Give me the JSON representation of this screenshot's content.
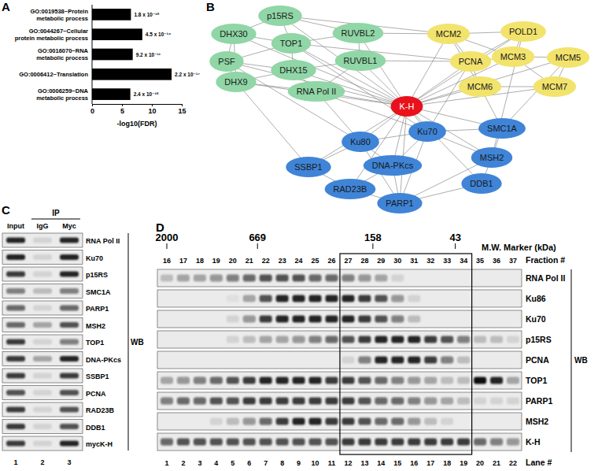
{
  "chart_data": {
    "type": "bar",
    "orientation": "horizontal",
    "panel_label": "A",
    "categories": [
      "GO:0019538~Protein\nmetabolic process",
      "GO:0044267~Cellular\nprotein metabolic process",
      "GO:0016070~RNA\nmetabolic process",
      "GO:0006412~Translation",
      "GO:0006259~DNA\nmetabolic process"
    ],
    "values": [
      6.5,
      8.4,
      6.8,
      13.3,
      6.4
    ],
    "annotations": [
      "1.8 x 10⁻¹⁰",
      "4.5 x 10⁻¹⁴",
      "9.2 x 10⁻¹¹",
      "2.2 x 10⁻¹⁷",
      "2.4 x 10⁻¹⁰"
    ],
    "color": "#000000",
    "xlabel": "-log10(FDR)",
    "xlim": [
      0,
      15
    ],
    "xticks": [
      0,
      5,
      10,
      15
    ]
  },
  "network": {
    "panel_label": "B",
    "nodes": [
      {
        "label": "DHX30",
        "color": "#90d6a6"
      },
      {
        "label": "p15RS",
        "color": "#90d6a6"
      },
      {
        "label": "PSF",
        "color": "#90d6a6"
      },
      {
        "label": "TOP1",
        "color": "#90d6a6"
      },
      {
        "label": "RUVBL2",
        "color": "#90d6a6"
      },
      {
        "label": "DHX9",
        "color": "#90d6a6"
      },
      {
        "label": "DHX15",
        "color": "#90d6a6"
      },
      {
        "label": "RUVBL1",
        "color": "#90d6a6"
      },
      {
        "label": "RNA Pol II",
        "color": "#90d6a6"
      },
      {
        "label": "MCM2",
        "color": "#f2e36c"
      },
      {
        "label": "POLD1",
        "color": "#f2e36c"
      },
      {
        "label": "PCNA",
        "color": "#f2e36c"
      },
      {
        "label": "MCM3",
        "color": "#f2e36c"
      },
      {
        "label": "MCM5",
        "color": "#f2e36c"
      },
      {
        "label": "MCM6",
        "color": "#f2e36c"
      },
      {
        "label": "MCM7",
        "color": "#f2e36c"
      },
      {
        "label": "K-H",
        "color": "#e8111c"
      },
      {
        "label": "Ku70",
        "color": "#3f84d7"
      },
      {
        "label": "Ku80",
        "color": "#3f84d7"
      },
      {
        "label": "SMC1A",
        "color": "#3f84d7"
      },
      {
        "label": "SSBP1",
        "color": "#3f84d7"
      },
      {
        "label": "DNA-PKcs",
        "color": "#3f84d7"
      },
      {
        "label": "MSH2",
        "color": "#3f84d7"
      },
      {
        "label": "RAD23B",
        "color": "#3f84d7"
      },
      {
        "label": "DDB1",
        "color": "#3f84d7"
      },
      {
        "label": "PARP1",
        "color": "#3f84d7"
      }
    ],
    "edges": [
      [
        "K-H",
        "DHX30"
      ],
      [
        "K-H",
        "p15RS"
      ],
      [
        "K-H",
        "PSF"
      ],
      [
        "K-H",
        "TOP1"
      ],
      [
        "K-H",
        "RUVBL2"
      ],
      [
        "K-H",
        "DHX9"
      ],
      [
        "K-H",
        "DHX15"
      ],
      [
        "K-H",
        "RUVBL1"
      ],
      [
        "K-H",
        "RNA Pol II"
      ],
      [
        "K-H",
        "MCM2"
      ],
      [
        "K-H",
        "POLD1"
      ],
      [
        "K-H",
        "PCNA"
      ],
      [
        "K-H",
        "MCM3"
      ],
      [
        "K-H",
        "MCM5"
      ],
      [
        "K-H",
        "MCM6"
      ],
      [
        "K-H",
        "MCM7"
      ],
      [
        "K-H",
        "Ku70"
      ],
      [
        "K-H",
        "Ku80"
      ],
      [
        "K-H",
        "SMC1A"
      ],
      [
        "K-H",
        "SSBP1"
      ],
      [
        "K-H",
        "DNA-PKcs"
      ],
      [
        "K-H",
        "MSH2"
      ],
      [
        "K-H",
        "RAD23B"
      ],
      [
        "K-H",
        "DDB1"
      ],
      [
        "K-H",
        "PARP1"
      ],
      [
        "DHX30",
        "p15RS"
      ],
      [
        "DHX30",
        "PSF"
      ],
      [
        "DHX30",
        "DHX9"
      ],
      [
        "DHX30",
        "TOP1"
      ],
      [
        "p15RS",
        "TOP1"
      ],
      [
        "p15RS",
        "RUVBL2"
      ],
      [
        "PSF",
        "DHX9"
      ],
      [
        "PSF",
        "TOP1"
      ],
      [
        "PSF",
        "DHX15"
      ],
      [
        "TOP1",
        "DHX15"
      ],
      [
        "TOP1",
        "RUVBL2"
      ],
      [
        "TOP1",
        "PCNA"
      ],
      [
        "RUVBL2",
        "RUVBL1"
      ],
      [
        "RUVBL2",
        "MCM2"
      ],
      [
        "DHX9",
        "DHX15"
      ],
      [
        "DHX9",
        "RNA Pol II"
      ],
      [
        "DHX15",
        "RUVBL1"
      ],
      [
        "DHX15",
        "RNA Pol II"
      ],
      [
        "RUVBL1",
        "RNA Pol II"
      ],
      [
        "RUVBL1",
        "PCNA"
      ],
      [
        "RNA Pol II",
        "Ku70"
      ],
      [
        "RNA Pol II",
        "Ku80"
      ],
      [
        "MCM2",
        "POLD1"
      ],
      [
        "MCM2",
        "PCNA"
      ],
      [
        "MCM2",
        "MCM3"
      ],
      [
        "MCM2",
        "MCM6"
      ],
      [
        "POLD1",
        "PCNA"
      ],
      [
        "POLD1",
        "MCM3"
      ],
      [
        "PCNA",
        "MCM3"
      ],
      [
        "PCNA",
        "MCM6"
      ],
      [
        "PCNA",
        "Ku70"
      ],
      [
        "MCM3",
        "MCM5"
      ],
      [
        "MCM3",
        "MCM7"
      ],
      [
        "MCM5",
        "MCM7"
      ],
      [
        "MCM6",
        "MCM7"
      ],
      [
        "MCM6",
        "SMC1A"
      ],
      [
        "Ku70",
        "Ku80"
      ],
      [
        "Ku70",
        "SMC1A"
      ],
      [
        "Ku70",
        "DNA-PKcs"
      ],
      [
        "Ku70",
        "PARP1"
      ],
      [
        "Ku80",
        "DNA-PKcs"
      ],
      [
        "Ku80",
        "SSBP1"
      ],
      [
        "Ku80",
        "PARP1"
      ],
      [
        "SMC1A",
        "MSH2"
      ],
      [
        "DNA-PKcs",
        "PARP1"
      ],
      [
        "DNA-PKcs",
        "RAD23B"
      ],
      [
        "MSH2",
        "DDB1"
      ],
      [
        "MSH2",
        "PARP1"
      ],
      [
        "SSBP1",
        "RAD23B"
      ],
      [
        "DDB1",
        "PARP1"
      ],
      [
        "RAD23B",
        "PARP1"
      ],
      [
        "Ku70",
        "MSH2"
      ],
      [
        "TOP1",
        "Ku70"
      ],
      [
        "p15RS",
        "MCM2"
      ],
      [
        "PSF",
        "Ku80"
      ],
      [
        "DHX9",
        "SSBP1"
      ],
      [
        "MCM5",
        "SMC1A"
      ],
      [
        "POLD1",
        "MSH2"
      ]
    ]
  },
  "coip_blot": {
    "panel_label": "C",
    "ip_label": "IP",
    "wb_label": "WB",
    "columns": [
      {
        "header": "Input",
        "lane": 1
      },
      {
        "header": "IgG",
        "lane": 2
      },
      {
        "header": "Myc",
        "lane": 3
      }
    ],
    "rows": [
      {
        "label": "RNA Pol II",
        "bands": [
          0.9,
          0.1,
          0.9
        ]
      },
      {
        "label": "Ku70",
        "bands": [
          0.9,
          0.1,
          0.9
        ]
      },
      {
        "label": "p15RS",
        "bands": [
          0.8,
          0.1,
          0.9
        ]
      },
      {
        "label": "SMC1A",
        "bands": [
          0.5,
          0.2,
          0.5
        ]
      },
      {
        "label": "PARP1",
        "bands": [
          0.6,
          0.1,
          0.6
        ]
      },
      {
        "label": "MSH2",
        "bands": [
          0.6,
          0.3,
          0.7
        ]
      },
      {
        "label": "TOP1",
        "bands": [
          0.8,
          0.1,
          0.5
        ]
      },
      {
        "label": "DNA-PKcs",
        "bands": [
          0.8,
          0.3,
          0.9
        ]
      },
      {
        "label": "SSBP1",
        "bands": [
          0.8,
          0.1,
          0.8
        ]
      },
      {
        "label": "PCNA",
        "bands": [
          0.7,
          0.1,
          0.7
        ]
      },
      {
        "label": "RAD23B",
        "bands": [
          0.8,
          0.1,
          0.7
        ]
      },
      {
        "label": "DDB1",
        "bands": [
          0.8,
          0.1,
          0.7
        ]
      },
      {
        "label": "mycK-H",
        "bands": [
          0.8,
          0.1,
          0.9
        ]
      }
    ]
  },
  "fractionation_blot": {
    "panel_label": "D",
    "marker_title": "M.W. Marker (kDa)",
    "fraction_title": "Fraction #",
    "lane_title": "Lane #",
    "wb_label": "WB",
    "markers": [
      {
        "label": "2000",
        "fraction": 16
      },
      {
        "label": "669",
        "fraction": 21.5
      },
      {
        "label": "158",
        "fraction": 28.5
      },
      {
        "label": "43",
        "fraction": 33.5
      }
    ],
    "fractions": [
      16,
      17,
      18,
      19,
      20,
      21,
      22,
      23,
      24,
      25,
      26,
      27,
      28,
      29,
      30,
      31,
      32,
      33,
      34,
      35,
      36,
      37
    ],
    "lanes": [
      1,
      2,
      3,
      4,
      5,
      6,
      7,
      8,
      9,
      10,
      11,
      12,
      13,
      14,
      15,
      16,
      17,
      18,
      19,
      20,
      21,
      22
    ],
    "highlight_lanes": [
      12,
      19
    ],
    "rows": [
      {
        "label": "RNA Pol II",
        "bands": [
          0.2,
          0.3,
          0.3,
          0.4,
          0.5,
          0.6,
          0.7,
          0.7,
          0.7,
          0.6,
          0.6,
          0.5,
          0.4,
          0.3,
          0.1,
          0,
          0,
          0,
          0,
          0,
          0,
          0
        ]
      },
      {
        "label": "Ku86",
        "bands": [
          0,
          0,
          0,
          0,
          0.05,
          0.3,
          0.7,
          0.9,
          0.9,
          0.9,
          0.9,
          0.9,
          0.8,
          0.7,
          0.4,
          0.1,
          0,
          0,
          0,
          0,
          0,
          0
        ]
      },
      {
        "label": "Ku70",
        "bands": [
          0,
          0,
          0,
          0,
          0.1,
          0.4,
          0.8,
          0.9,
          0.9,
          0.9,
          0.9,
          0.9,
          0.8,
          0.7,
          0.5,
          0.2,
          0,
          0,
          0,
          0,
          0,
          0
        ]
      },
      {
        "label": "p15RS",
        "bands": [
          0,
          0,
          0,
          0,
          0.1,
          0.2,
          0.3,
          0.3,
          0.4,
          0.5,
          0.6,
          0.7,
          0.8,
          0.9,
          0.9,
          0.9,
          0.8,
          0.7,
          0.5,
          0.2,
          0.2,
          0.1
        ]
      },
      {
        "label": "PCNA",
        "bands": [
          0,
          0,
          0,
          0,
          0,
          0,
          0,
          0,
          0,
          0,
          0,
          0.1,
          0.5,
          0.9,
          0.9,
          0.9,
          0.8,
          0.5,
          0.2,
          0,
          0,
          0
        ]
      },
      {
        "label": "TOP1",
        "bands": [
          0.3,
          0.4,
          0.5,
          0.6,
          0.7,
          0.8,
          0.9,
          0.9,
          0.9,
          0.9,
          0.8,
          0.8,
          0.7,
          0.6,
          0.5,
          0.4,
          0.3,
          0.2,
          0.2,
          1,
          0.9,
          0.3
        ]
      },
      {
        "label": "PARP1",
        "bands": [
          0.5,
          0.6,
          0.6,
          0.7,
          0.7,
          0.8,
          0.8,
          0.8,
          0.8,
          0.8,
          0.8,
          0.8,
          0.7,
          0.6,
          0.6,
          0.5,
          0.4,
          0.3,
          0.2,
          0.1,
          0.1,
          0.1
        ]
      },
      {
        "label": "MSH2",
        "bands": [
          0,
          0,
          0,
          0.1,
          0.2,
          0.4,
          0.6,
          0.8,
          0.9,
          0.9,
          0.8,
          0.8,
          0.7,
          0.6,
          0.6,
          0.4,
          0.2,
          0.1,
          0,
          0,
          0,
          0
        ]
      },
      {
        "label": "K-H",
        "bands": [
          0.6,
          0.7,
          0.7,
          0.7,
          0.7,
          0.7,
          0.7,
          0.7,
          0.7,
          0.7,
          0.7,
          0.8,
          0.8,
          0.8,
          0.8,
          0.8,
          0.8,
          0.8,
          0.8,
          0.6,
          0.5,
          0.4
        ]
      }
    ]
  }
}
